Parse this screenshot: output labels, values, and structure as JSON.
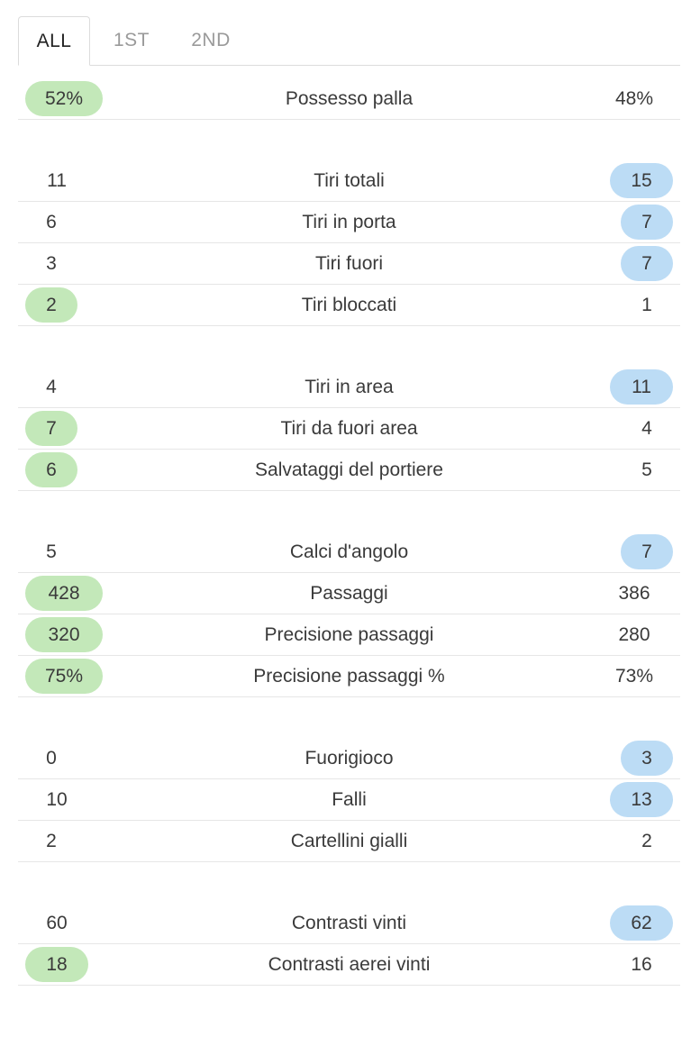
{
  "tabs": [
    {
      "label": "ALL",
      "active": true
    },
    {
      "label": "1ST",
      "active": false
    },
    {
      "label": "2ND",
      "active": false
    }
  ],
  "colors": {
    "home_highlight": "#c3e8b9",
    "away_highlight": "#bcdcf5",
    "divider": "#e6e6e6"
  },
  "groups": [
    {
      "rows": [
        {
          "label": "Possesso palla",
          "home": "52%",
          "away": "48%",
          "highlight": "home"
        }
      ]
    },
    {
      "rows": [
        {
          "label": "Tiri totali",
          "home": "11",
          "away": "15",
          "highlight": "away"
        },
        {
          "label": "Tiri in porta",
          "home": "6",
          "away": "7",
          "highlight": "away"
        },
        {
          "label": "Tiri fuori",
          "home": "3",
          "away": "7",
          "highlight": "away"
        },
        {
          "label": "Tiri bloccati",
          "home": "2",
          "away": "1",
          "highlight": "home"
        }
      ]
    },
    {
      "rows": [
        {
          "label": "Tiri in area",
          "home": "4",
          "away": "11",
          "highlight": "away"
        },
        {
          "label": "Tiri da fuori area",
          "home": "7",
          "away": "4",
          "highlight": "home"
        },
        {
          "label": "Salvataggi del portiere",
          "home": "6",
          "away": "5",
          "highlight": "home"
        }
      ]
    },
    {
      "rows": [
        {
          "label": "Calci d'angolo",
          "home": "5",
          "away": "7",
          "highlight": "away"
        },
        {
          "label": "Passaggi",
          "home": "428",
          "away": "386",
          "highlight": "home"
        },
        {
          "label": "Precisione passaggi",
          "home": "320",
          "away": "280",
          "highlight": "home"
        },
        {
          "label": "Precisione passaggi %",
          "home": "75%",
          "away": "73%",
          "highlight": "home"
        }
      ]
    },
    {
      "rows": [
        {
          "label": "Fuorigioco",
          "home": "0",
          "away": "3",
          "highlight": "away"
        },
        {
          "label": "Falli",
          "home": "10",
          "away": "13",
          "highlight": "away"
        },
        {
          "label": "Cartellini gialli",
          "home": "2",
          "away": "2",
          "highlight": "none"
        }
      ]
    },
    {
      "rows": [
        {
          "label": "Contrasti vinti",
          "home": "60",
          "away": "62",
          "highlight": "away"
        },
        {
          "label": "Contrasti aerei vinti",
          "home": "18",
          "away": "16",
          "highlight": "home"
        }
      ]
    }
  ]
}
